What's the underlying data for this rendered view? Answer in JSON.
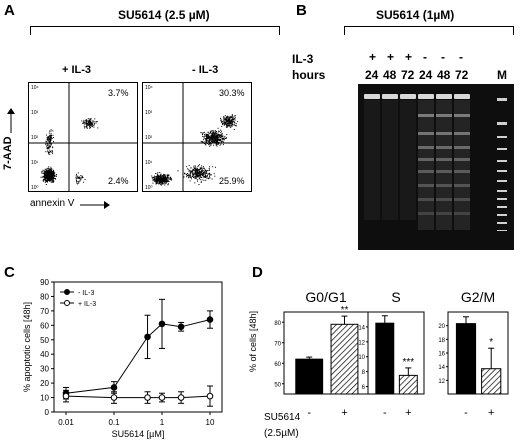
{
  "panels": {
    "A": {
      "letter": "A",
      "header": "SU5614 (2.5 µM)",
      "y_label": "7-AAD",
      "x_label": "annexin V",
      "plots": [
        {
          "condition": "+ IL-3",
          "upper_right": "3.7%",
          "lower_right": "2.4%"
        },
        {
          "condition": "- IL-3",
          "upper_right": "30.3%",
          "lower_right": "25.9%"
        }
      ],
      "axis_ticks": [
        "10⁰",
        "10¹",
        "10²",
        "10³",
        "10⁴"
      ]
    },
    "B": {
      "letter": "B",
      "header": "SU5614 (1µM)",
      "row1_label": "IL-3",
      "row2_label": "hours",
      "il3": [
        "+",
        "+",
        "+",
        "-",
        "-",
        "-"
      ],
      "hours": [
        "24",
        "48",
        "72",
        "24",
        "48",
        "72"
      ],
      "marker_label": "M"
    },
    "C": {
      "letter": "C",
      "chart_data": {
        "type": "line",
        "xlabel": "SU5614 [µM]",
        "ylabel": "% apoptotic cells [48h]",
        "xscale": "log",
        "x": [
          0.01,
          0.1,
          0.5,
          1,
          2.5,
          10
        ],
        "x_tick_labels": [
          "0.01",
          "0.1",
          "1",
          "10"
        ],
        "y_tick_labels": [
          "0",
          "10",
          "20",
          "30",
          "40",
          "50",
          "60",
          "70",
          "80",
          "90"
        ],
        "ylim": [
          0,
          90
        ],
        "legend_position": "top-left",
        "series": [
          {
            "name": "- IL-3",
            "marker": "filled",
            "values": [
              13,
              17,
              52,
              61,
              59,
              64
            ],
            "errors": [
              4,
              4,
              15,
              17,
              3,
              6
            ]
          },
          {
            "name": "+ IL-3",
            "marker": "open",
            "values": [
              11,
              10,
              10,
              10,
              10,
              11
            ],
            "errors": [
              4,
              4,
              4,
              3,
              4,
              7
            ]
          }
        ]
      }
    },
    "D": {
      "letter": "D",
      "ylabel": "% of cells [48h]",
      "x_row_label": "SU5614",
      "x_row_label2": "(2.5µM)",
      "chart_data": [
        {
          "type": "bar",
          "title": "G0/G1",
          "categories": [
            "-",
            "+"
          ],
          "values": [
            62,
            79
          ],
          "errors": [
            1,
            4
          ],
          "ylim": [
            45,
            85
          ],
          "y_ticks": [
            "50",
            "60",
            "70",
            "80"
          ],
          "significance": "**",
          "fills": [
            "solid",
            "hatched"
          ]
        },
        {
          "type": "bar",
          "title": "S",
          "categories": [
            "-",
            "+"
          ],
          "values": [
            14.5,
            7.5
          ],
          "errors": [
            1,
            1
          ],
          "ylim": [
            5,
            16
          ],
          "y_ticks": [
            "6",
            "8",
            "10",
            "12",
            "14"
          ],
          "significance": "***",
          "fills": [
            "solid",
            "hatched"
          ]
        },
        {
          "type": "bar",
          "title": "G2/M",
          "categories": [
            "-",
            "+"
          ],
          "values": [
            20.3,
            13.7
          ],
          "errors": [
            1,
            3
          ],
          "ylim": [
            10,
            22
          ],
          "y_ticks": [
            "12",
            "14",
            "16",
            "18",
            "20"
          ],
          "significance": "*",
          "fills": [
            "solid",
            "hatched"
          ]
        }
      ]
    }
  },
  "colors": {
    "ink": "#000000",
    "gel_bg": "#0e0e0e",
    "band": "#d8d8d8"
  }
}
